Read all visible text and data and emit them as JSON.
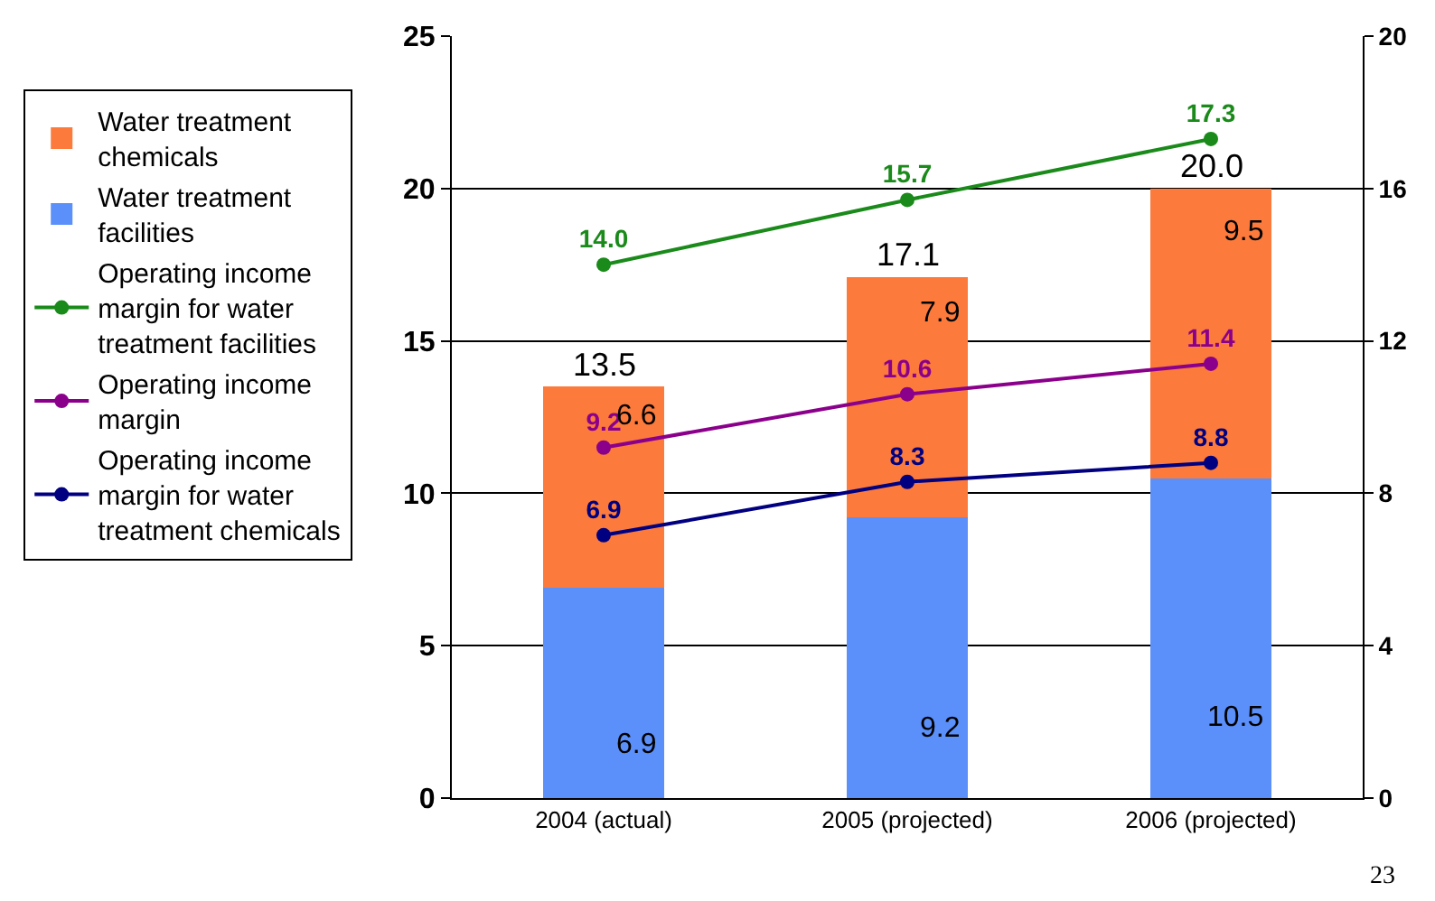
{
  "chart_data": {
    "type": "bar",
    "stacked": true,
    "categories": [
      "2004 (actual)",
      "2005 (projected)",
      "2006 (projected)"
    ],
    "series": [
      {
        "name": "Water treatment facilities",
        "color": "#5b8ff9",
        "values": [
          6.9,
          9.2,
          10.5
        ]
      },
      {
        "name": "Water treatment chemicals",
        "color": "#fb7a3c",
        "values": [
          6.6,
          7.9,
          9.5
        ]
      },
      {
        "name": "Operating income margin for water treatment facilities",
        "type": "line",
        "axis": "y2",
        "color": "#1a8a1a",
        "values": [
          14.0,
          15.7,
          17.3
        ],
        "value_labels": [
          "14.0",
          "15.7",
          "17.3"
        ]
      },
      {
        "name": "Operating income margin",
        "type": "line",
        "axis": "y2",
        "color": "#8b008b",
        "values": [
          9.2,
          10.6,
          11.4
        ]
      },
      {
        "name": "Operating income margin for water treatment chemicals",
        "type": "line",
        "axis": "y2",
        "color": "#000080",
        "values": [
          6.9,
          8.3,
          8.8
        ]
      }
    ],
    "totals": [
      "13.5",
      "17.1",
      "20.0"
    ],
    "data_labels": true,
    "ylim": [
      0,
      25
    ],
    "yticks": [
      0,
      5,
      10,
      15,
      20,
      25
    ],
    "y2lim": [
      0,
      20
    ],
    "y2ticks": [
      0,
      4,
      8,
      12,
      16,
      20
    ],
    "grid": "y",
    "legend": "left",
    "marker": "circle",
    "annotations": [
      "23"
    ]
  }
}
